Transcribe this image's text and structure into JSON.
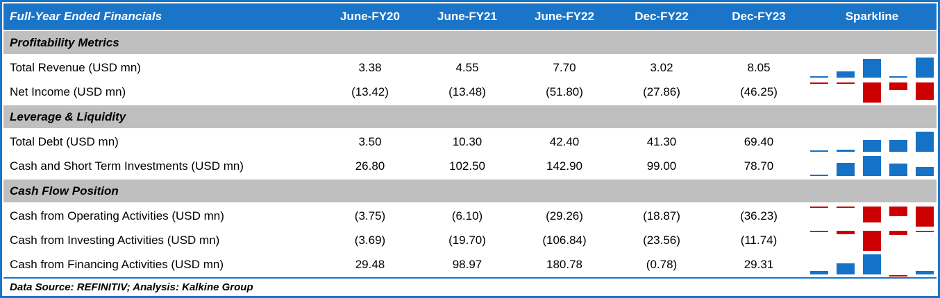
{
  "table": {
    "title": "Full-Year Ended Financials",
    "columns": [
      "June-FY20",
      "June-FY21",
      "June-FY22",
      "Dec-FY22",
      "Dec-FY23"
    ],
    "sparkline_label": "Sparkline",
    "sections": [
      {
        "label": "Profitability Metrics",
        "rows": [
          {
            "label": "Total Revenue (USD mn)",
            "display": [
              "3.38",
              "4.55",
              "7.70",
              "3.02",
              "8.05"
            ],
            "values": [
              3.38,
              4.55,
              7.7,
              3.02,
              8.05
            ]
          },
          {
            "label": "Net Income (USD mn)",
            "display": [
              "(13.42)",
              "(13.48)",
              "(51.80)",
              "(27.86)",
              "(46.25)"
            ],
            "values": [
              -13.42,
              -13.48,
              -51.8,
              -27.86,
              -46.25
            ]
          }
        ]
      },
      {
        "label": "Leverage & Liquidity",
        "rows": [
          {
            "label": "Total Debt (USD mn)",
            "display": [
              "3.50",
              "10.30",
              "42.40",
              "41.30",
              "69.40"
            ],
            "values": [
              3.5,
              10.3,
              42.4,
              41.3,
              69.4
            ]
          },
          {
            "label": "Cash and Short Term Investments (USD mn)",
            "display": [
              "26.80",
              "102.50",
              "142.90",
              "99.00",
              "78.70"
            ],
            "values": [
              26.8,
              102.5,
              142.9,
              99.0,
              78.7
            ]
          }
        ]
      },
      {
        "label": "Cash Flow Position",
        "rows": [
          {
            "label": "Cash from Operating Activities (USD mn)",
            "display": [
              "(3.75)",
              "(6.10)",
              "(29.26)",
              "(18.87)",
              "(36.23)"
            ],
            "values": [
              -3.75,
              -6.1,
              -29.26,
              -18.87,
              -36.23
            ]
          },
          {
            "label": "Cash from Investing Activities (USD mn)",
            "display": [
              "(3.69)",
              "(19.70)",
              "(106.84)",
              "(23.56)",
              "(11.74)"
            ],
            "values": [
              -3.69,
              -19.7,
              -106.84,
              -23.56,
              -11.74
            ]
          },
          {
            "label": "Cash from Financing Activities (USD mn)",
            "display": [
              "29.48",
              "98.97",
              "180.78",
              "(0.78)",
              "29.31"
            ],
            "values": [
              29.48,
              98.97,
              180.78,
              -0.78,
              29.31
            ]
          }
        ]
      }
    ],
    "footer": "Data Source: REFINITIV; Analysis: Kalkine Group",
    "colors": {
      "header_bg": "#1a75c9",
      "border": "#1a75c9",
      "section_bg": "#bfbfbf",
      "positive_bar": "#1572c6",
      "negative_bar": "#cc0000",
      "header_text": "#ffffff",
      "body_text": "#000000"
    }
  },
  "chart_data": {
    "type": "table",
    "title": "Full-Year Ended Financials",
    "columns": [
      "June-FY20",
      "June-FY21",
      "June-FY22",
      "Dec-FY22",
      "Dec-FY23"
    ],
    "rows": [
      {
        "section": "Profitability Metrics",
        "label": "Total Revenue (USD mn)",
        "values": [
          3.38,
          4.55,
          7.7,
          3.02,
          8.05
        ]
      },
      {
        "section": "Profitability Metrics",
        "label": "Net Income (USD mn)",
        "values": [
          -13.42,
          -13.48,
          -51.8,
          -27.86,
          -46.25
        ]
      },
      {
        "section": "Leverage & Liquidity",
        "label": "Total Debt (USD mn)",
        "values": [
          3.5,
          10.3,
          42.4,
          41.3,
          69.4
        ]
      },
      {
        "section": "Leverage & Liquidity",
        "label": "Cash and Short Term Investments (USD mn)",
        "values": [
          26.8,
          102.5,
          142.9,
          99.0,
          78.7
        ]
      },
      {
        "section": "Cash Flow Position",
        "label": "Cash from Operating Activities (USD mn)",
        "values": [
          -3.75,
          -6.1,
          -29.26,
          -18.87,
          -36.23
        ]
      },
      {
        "section": "Cash Flow Position",
        "label": "Cash from Investing Activities (USD mn)",
        "values": [
          -3.69,
          -19.7,
          -106.84,
          -23.56,
          -11.74
        ]
      },
      {
        "section": "Cash Flow Position",
        "label": "Cash from Financing Activities (USD mn)",
        "values": [
          29.48,
          98.97,
          180.78,
          -0.78,
          29.31
        ]
      }
    ],
    "sparkline": {
      "type": "bar",
      "positive_color": "#1572c6",
      "negative_color": "#cc0000"
    },
    "footer": "Data Source: REFINITIV; Analysis: Kalkine Group"
  }
}
